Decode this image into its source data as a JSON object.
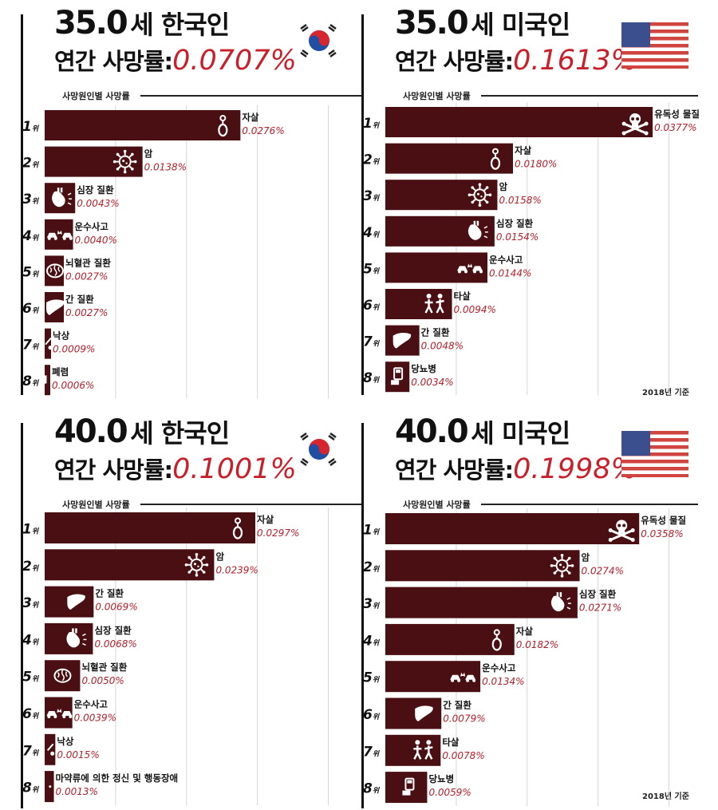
{
  "subtitle_label": "사망원인별 사망률",
  "rank_suffix": "위",
  "basis_note": "2018년 기준",
  "colors": {
    "bar": "#4a0f12",
    "rate_text": "#c8202a",
    "value_text": "#b3202a",
    "grid": "#d5d5d5"
  },
  "panels": [
    {
      "age": "35.0",
      "title_text": "세 한국인",
      "rate_label": "연간 사망률:",
      "rate_value": "0.0707%",
      "flag": "korea-flag",
      "show_basis": false
    },
    {
      "age": "35.0",
      "title_text": "세 미국인",
      "rate_label": "연간 사망률:",
      "rate_value": "0.1613%",
      "flag": "usa-flag",
      "show_basis": true
    },
    {
      "age": "40.0",
      "title_text": "세 한국인",
      "rate_label": "연간 사망률:",
      "rate_value": "0.1001%",
      "flag": "korea-flag",
      "show_basis": false
    },
    {
      "age": "40.0",
      "title_text": "세 미국인",
      "rate_label": "연간 사망률:",
      "rate_value": "0.1998%",
      "flag": "usa-flag",
      "show_basis": true
    }
  ],
  "chart_data": [
    {
      "type": "bar",
      "title": "35.0세 한국인",
      "categories": [
        "1위",
        "2위",
        "3위",
        "4위",
        "5위",
        "6위",
        "7위",
        "8위"
      ],
      "labels": [
        "자살",
        "암",
        "심장 질환",
        "운수사고",
        "뇌혈관 질환",
        "간 질환",
        "낙상",
        "폐렴"
      ],
      "values": [
        0.0276,
        0.0138,
        0.0043,
        0.004,
        0.0027,
        0.0027,
        0.0009,
        0.0006
      ],
      "value_labels": [
        "0.0276%",
        "0.0138%",
        "0.0043%",
        "0.0040%",
        "0.0027%",
        "0.0027%",
        "0.0009%",
        "0.0006%"
      ],
      "icons": [
        "suicide-icon",
        "cancer-icon",
        "heart-icon",
        "car-crash-icon",
        "brain-icon",
        "liver-icon",
        "fall-icon",
        "lungs-icon"
      ],
      "xlim": [
        0,
        0.045
      ],
      "grid": true
    },
    {
      "type": "bar",
      "title": "35.0세 미국인",
      "categories": [
        "1위",
        "2위",
        "3위",
        "4위",
        "5위",
        "6위",
        "7위",
        "8위"
      ],
      "labels": [
        "유독성 물질",
        "자살",
        "암",
        "심장 질환",
        "운수사고",
        "타살",
        "간 질환",
        "당뇨병"
      ],
      "values": [
        0.0377,
        0.018,
        0.0158,
        0.0154,
        0.0144,
        0.0094,
        0.0048,
        0.0034
      ],
      "value_labels": [
        "0.0377%",
        "0.0180%",
        "0.0158%",
        "0.0154%",
        "0.0144%",
        "0.0094%",
        "0.0048%",
        "0.0034%"
      ],
      "icons": [
        "poison-icon",
        "suicide-icon",
        "cancer-icon",
        "heart-icon",
        "car-crash-icon",
        "homicide-icon",
        "liver-icon",
        "diabetes-icon"
      ],
      "xlim": [
        0,
        0.045
      ],
      "grid": true
    },
    {
      "type": "bar",
      "title": "40.0세 한국인",
      "categories": [
        "1위",
        "2위",
        "3위",
        "4위",
        "5위",
        "6위",
        "7위",
        "8위"
      ],
      "labels": [
        "자살",
        "암",
        "간 질환",
        "심장 질환",
        "뇌혈관 질환",
        "운수사고",
        "낙상",
        "마약류에 의한 정신 및 행동장애"
      ],
      "values": [
        0.0297,
        0.0239,
        0.0069,
        0.0068,
        0.005,
        0.0039,
        0.0015,
        0.0013
      ],
      "value_labels": [
        "0.0297%",
        "0.0239%",
        "0.0069%",
        "0.0068%",
        "0.0050%",
        "0.0039%",
        "0.0015%",
        "0.0013%"
      ],
      "icons": [
        "suicide-icon",
        "cancer-icon",
        "liver-icon",
        "heart-icon",
        "brain-icon",
        "car-crash-icon",
        "fall-icon",
        "drug-icon"
      ],
      "xlim": [
        0,
        0.045
      ],
      "grid": true
    },
    {
      "type": "bar",
      "title": "40.0세 미국인",
      "categories": [
        "1위",
        "2위",
        "3위",
        "4위",
        "5위",
        "6위",
        "7위",
        "8위"
      ],
      "labels": [
        "유독성 물질",
        "암",
        "심장 질환",
        "자살",
        "운수사고",
        "간 질환",
        "타살",
        "당뇨병"
      ],
      "values": [
        0.0358,
        0.0274,
        0.0271,
        0.0182,
        0.0134,
        0.0079,
        0.0078,
        0.0059
      ],
      "value_labels": [
        "0.0358%",
        "0.0274%",
        "0.0271%",
        "0.0182%",
        "0.0134%",
        "0.0079%",
        "0.0078%",
        "0.0059%"
      ],
      "icons": [
        "poison-icon",
        "cancer-icon",
        "heart-icon",
        "suicide-icon",
        "car-crash-icon",
        "liver-icon",
        "homicide-icon",
        "diabetes-icon"
      ],
      "xlim": [
        0,
        0.045
      ],
      "grid": true
    }
  ]
}
